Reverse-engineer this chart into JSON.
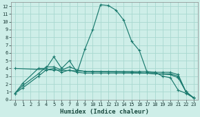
{
  "background_color": "#ceeee8",
  "grid_color": "#a8d8d0",
  "line_color": "#1a7a6e",
  "xlabel": "Humidex (Indice chaleur)",
  "xlim": [
    -0.5,
    23.5
  ],
  "ylim": [
    0,
    12.5
  ],
  "xtick_labels": [
    "0",
    "1",
    "2",
    "3",
    "4",
    "5",
    "6",
    "7",
    "8",
    "9",
    "10",
    "11",
    "12",
    "13",
    "14",
    "15",
    "16",
    "17",
    "18",
    "19",
    "20",
    "21",
    "22",
    "23"
  ],
  "xticks": [
    0,
    1,
    2,
    3,
    4,
    5,
    6,
    7,
    8,
    9,
    10,
    11,
    12,
    13,
    14,
    15,
    16,
    17,
    18,
    19,
    20,
    21,
    22,
    23
  ],
  "yticks": [
    0,
    1,
    2,
    3,
    4,
    5,
    6,
    7,
    8,
    9,
    10,
    11,
    12
  ],
  "series": [
    {
      "x": [
        0,
        1,
        3,
        4,
        5,
        6,
        7,
        8,
        9,
        10,
        11,
        12,
        13,
        14,
        15,
        16,
        17,
        18,
        19,
        20,
        21,
        22,
        23
      ],
      "y": [
        0.8,
        2.1,
        4.0,
        4.0,
        5.5,
        4.0,
        5.0,
        3.5,
        6.5,
        9.0,
        12.2,
        12.1,
        11.5,
        10.2,
        7.5,
        6.3,
        3.5,
        3.5,
        3.0,
        2.8,
        1.2,
        0.8,
        0.2
      ]
    },
    {
      "x": [
        0,
        1,
        3,
        4,
        5,
        6,
        7,
        8,
        9,
        10,
        11,
        12,
        13,
        14,
        15,
        16,
        17,
        18,
        19,
        20,
        21,
        22,
        23
      ],
      "y": [
        0.8,
        1.8,
        3.3,
        4.2,
        4.2,
        3.8,
        4.2,
        3.8,
        3.6,
        3.6,
        3.6,
        3.6,
        3.6,
        3.6,
        3.6,
        3.6,
        3.6,
        3.5,
        3.5,
        3.5,
        3.2,
        1.0,
        0.2
      ]
    },
    {
      "x": [
        0,
        1,
        3,
        4,
        5,
        6,
        7,
        8,
        9,
        10,
        11,
        12,
        13,
        14,
        15,
        16,
        17,
        18,
        19,
        20,
        21,
        22,
        23
      ],
      "y": [
        0.8,
        1.5,
        3.0,
        3.8,
        4.0,
        3.5,
        3.8,
        3.5,
        3.4,
        3.4,
        3.4,
        3.4,
        3.4,
        3.4,
        3.4,
        3.4,
        3.4,
        3.3,
        3.3,
        3.3,
        3.0,
        1.0,
        0.2
      ]
    },
    {
      "x": [
        0,
        5,
        10,
        15,
        20,
        21,
        22,
        23
      ],
      "y": [
        4.0,
        3.8,
        3.6,
        3.5,
        3.2,
        2.8,
        1.0,
        0.2
      ]
    }
  ]
}
